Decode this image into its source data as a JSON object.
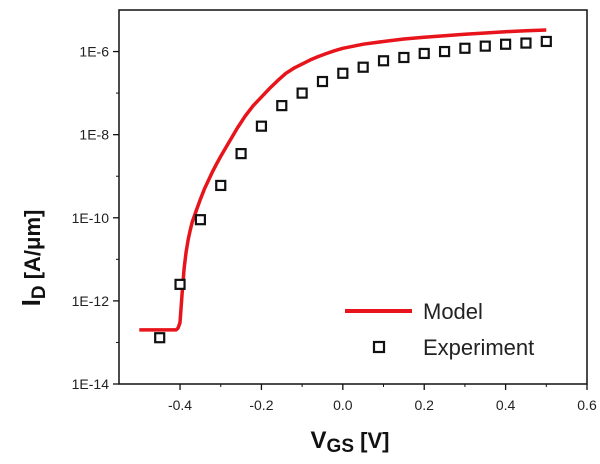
{
  "chart_data": {
    "type": "line",
    "xlabel": {
      "main": "V",
      "sub": "GS",
      "unit": " [V]"
    },
    "ylabel": {
      "main": "I",
      "sub": "D",
      "unit": " [A/μm]"
    },
    "xlim": [
      -0.55,
      0.6
    ],
    "ylim": [
      1e-14,
      1e-05
    ],
    "yscale": "log",
    "grid": false,
    "legend_position": "bottom-right",
    "x_ticks": [
      -0.4,
      -0.2,
      0.0,
      0.2,
      0.4,
      0.6
    ],
    "x_tick_labels": [
      "-0.4",
      "-0.2",
      "0.0",
      "0.2",
      "0.4",
      "0.6"
    ],
    "y_ticks": [
      1e-14,
      1e-12,
      1e-10,
      1e-08,
      1e-06
    ],
    "y_tick_labels": [
      "1E-14",
      "1E-12",
      "1E-10",
      "1E-8",
      "1E-6"
    ],
    "series": [
      {
        "name": "Model",
        "kind": "line",
        "color": "#e8141b",
        "x": [
          -0.5,
          -0.41,
          -0.405,
          -0.4,
          -0.395,
          -0.39,
          -0.385,
          -0.38,
          -0.375,
          -0.37,
          -0.36,
          -0.35,
          -0.34,
          -0.33,
          -0.32,
          -0.31,
          -0.3,
          -0.28,
          -0.26,
          -0.24,
          -0.22,
          -0.2,
          -0.18,
          -0.16,
          -0.14,
          -0.12,
          -0.1,
          -0.08,
          -0.06,
          -0.04,
          -0.02,
          0.0,
          0.05,
          0.1,
          0.15,
          0.2,
          0.25,
          0.3,
          0.35,
          0.4,
          0.45,
          0.5
        ],
        "y": [
          2e-13,
          2e-13,
          2.2e-13,
          3e-13,
          1.5e-12,
          6e-12,
          1.5e-11,
          3e-11,
          5e-11,
          8e-11,
          1.5e-10,
          2.8e-10,
          5e-10,
          8e-10,
          1.3e-09,
          2e-09,
          3e-09,
          6.5e-09,
          1.4e-08,
          2.8e-08,
          5e-08,
          8e-08,
          1.3e-07,
          2e-07,
          3e-07,
          4e-07,
          5e-07,
          6.3e-07,
          7.6e-07,
          9e-07,
          1.05e-06,
          1.2e-06,
          1.5e-06,
          1.75e-06,
          2e-06,
          2.2e-06,
          2.4e-06,
          2.6e-06,
          2.8e-06,
          3e-06,
          3.15e-06,
          3.3e-06
        ]
      },
      {
        "name": "Experiment",
        "kind": "scatter",
        "marker": "open-square",
        "color": "#111111",
        "x": [
          -0.45,
          -0.4,
          -0.35,
          -0.3,
          -0.25,
          -0.2,
          -0.15,
          -0.1,
          -0.05,
          0.0,
          0.05,
          0.1,
          0.15,
          0.2,
          0.25,
          0.3,
          0.35,
          0.4,
          0.45,
          0.5
        ],
        "y": [
          1.3e-13,
          2.5e-12,
          9e-11,
          6e-10,
          3.5e-09,
          1.6e-08,
          5e-08,
          1e-07,
          1.9e-07,
          3e-07,
          4.2e-07,
          6e-07,
          7.2e-07,
          9e-07,
          1e-06,
          1.2e-06,
          1.35e-06,
          1.5e-06,
          1.6e-06,
          1.75e-06
        ]
      }
    ]
  }
}
